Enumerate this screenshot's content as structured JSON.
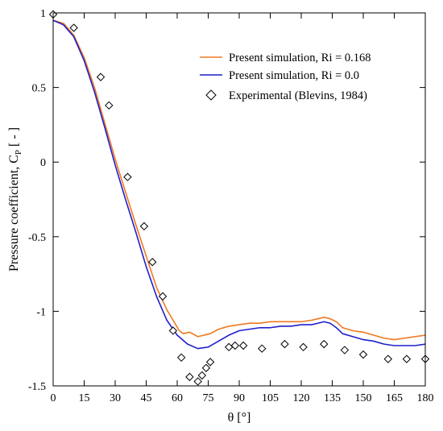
{
  "chart_data": {
    "type": "line",
    "xlabel": "θ [°]",
    "ylabel": "Pressure coefficient, C",
    "ylabel_sub": "P",
    "ylabel_unit": " [ - ]",
    "xlim": [
      0,
      180
    ],
    "ylim": [
      -1.5,
      1
    ],
    "xticks": [
      0,
      15,
      30,
      45,
      60,
      75,
      90,
      105,
      120,
      135,
      150,
      165,
      180
    ],
    "yticks": [
      1,
      0.5,
      0,
      -0.5,
      -1,
      -1.5
    ],
    "ytick_labels": [
      "1",
      "0.5",
      "0",
      "-0.5",
      "-1",
      "-1.5"
    ],
    "grid": false,
    "legend_position": "top-right",
    "series": [
      {
        "name": "Present simulation, Ri = 0.168",
        "kind": "line",
        "color": "#f07820",
        "x": [
          0,
          5,
          10,
          15,
          20,
          25,
          30,
          35,
          40,
          45,
          50,
          55,
          58,
          61,
          63,
          66,
          70,
          73,
          76,
          80,
          85,
          90,
          95,
          100,
          105,
          110,
          115,
          120,
          125,
          128,
          131,
          134,
          137,
          140,
          145,
          150,
          155,
          160,
          165,
          170,
          175,
          180
        ],
        "y": [
          0.95,
          0.93,
          0.85,
          0.7,
          0.5,
          0.26,
          0.02,
          -0.2,
          -0.42,
          -0.63,
          -0.84,
          -0.99,
          -1.06,
          -1.13,
          -1.15,
          -1.14,
          -1.17,
          -1.16,
          -1.15,
          -1.12,
          -1.1,
          -1.09,
          -1.08,
          -1.08,
          -1.07,
          -1.07,
          -1.07,
          -1.07,
          -1.06,
          -1.05,
          -1.04,
          -1.05,
          -1.07,
          -1.11,
          -1.13,
          -1.14,
          -1.16,
          -1.18,
          -1.19,
          -1.18,
          -1.17,
          -1.16
        ]
      },
      {
        "name": "Present simulation, Ri = 0.0",
        "kind": "line",
        "color": "#1f1fcc",
        "x": [
          0,
          5,
          10,
          15,
          20,
          25,
          30,
          35,
          40,
          45,
          50,
          55,
          60,
          65,
          70,
          75,
          80,
          85,
          90,
          95,
          100,
          105,
          110,
          115,
          120,
          125,
          128,
          131,
          134,
          137,
          140,
          145,
          150,
          155,
          160,
          165,
          170,
          175,
          180
        ],
        "y": [
          0.95,
          0.92,
          0.84,
          0.68,
          0.47,
          0.23,
          -0.02,
          -0.25,
          -0.47,
          -0.7,
          -0.9,
          -1.06,
          -1.16,
          -1.22,
          -1.25,
          -1.24,
          -1.2,
          -1.16,
          -1.13,
          -1.12,
          -1.11,
          -1.11,
          -1.1,
          -1.1,
          -1.09,
          -1.09,
          -1.08,
          -1.07,
          -1.08,
          -1.11,
          -1.15,
          -1.17,
          -1.19,
          -1.2,
          -1.22,
          -1.23,
          -1.23,
          -1.23,
          -1.22
        ]
      },
      {
        "name": "Experimental (Blevins, 1984)",
        "kind": "scatter",
        "color": "#000000",
        "x": [
          0,
          10,
          23,
          27,
          36,
          44,
          48,
          53,
          58,
          62,
          66,
          70,
          72,
          74,
          76,
          85,
          88,
          92,
          101,
          112,
          121,
          131,
          141,
          150,
          162,
          171,
          180
        ],
        "y": [
          0.99,
          0.9,
          0.57,
          0.38,
          -0.1,
          -0.43,
          -0.67,
          -0.9,
          -1.13,
          -1.31,
          -1.44,
          -1.47,
          -1.43,
          -1.38,
          -1.34,
          -1.24,
          -1.23,
          -1.23,
          -1.25,
          -1.22,
          -1.24,
          -1.22,
          -1.26,
          -1.29,
          -1.32,
          -1.32,
          -1.32
        ]
      }
    ]
  }
}
